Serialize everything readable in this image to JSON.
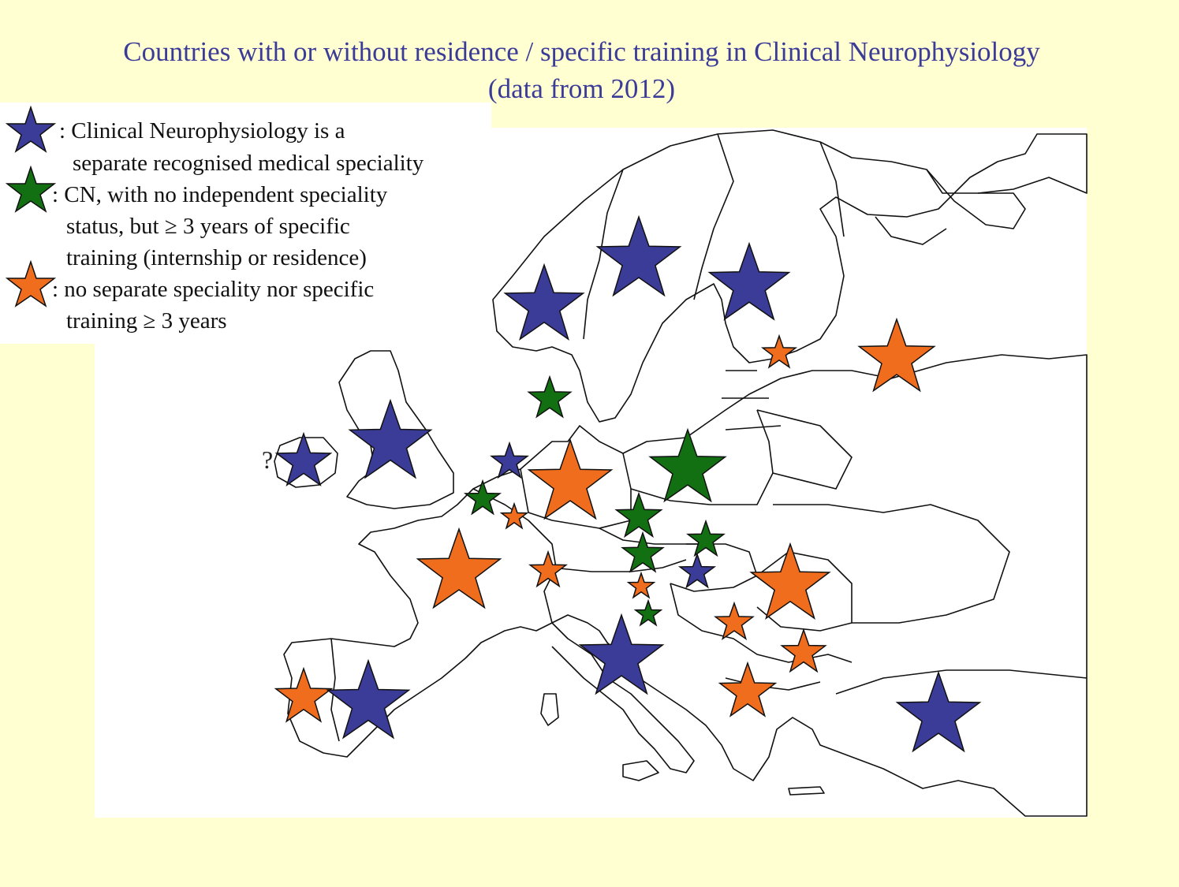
{
  "title": {
    "line1": "Countries with or without residence / specific training in Clinical Neurophysiology",
    "line2": "(data from 2012)"
  },
  "legend": {
    "items": [
      {
        "color": "#3b3b98",
        "lines": [
          ": Clinical Neurophysiology is a",
          "separate recognised medical speciality"
        ]
      },
      {
        "color": "#127012",
        "lines": [
          ": CN, with no independent speciality",
          "status, but ≥ 3 years of specific",
          "training (internship or residence)"
        ]
      },
      {
        "color": "#f06d1e",
        "lines": [
          ": no separate speciality nor specific",
          "training ≥ 3 years"
        ]
      }
    ]
  },
  "annotations": {
    "ireland_uncertain": "?"
  },
  "colors": {
    "blue": "#3b3b98",
    "green": "#127012",
    "orange": "#f06d1e",
    "outline": "#111111",
    "background": "#ffffd2"
  }
}
